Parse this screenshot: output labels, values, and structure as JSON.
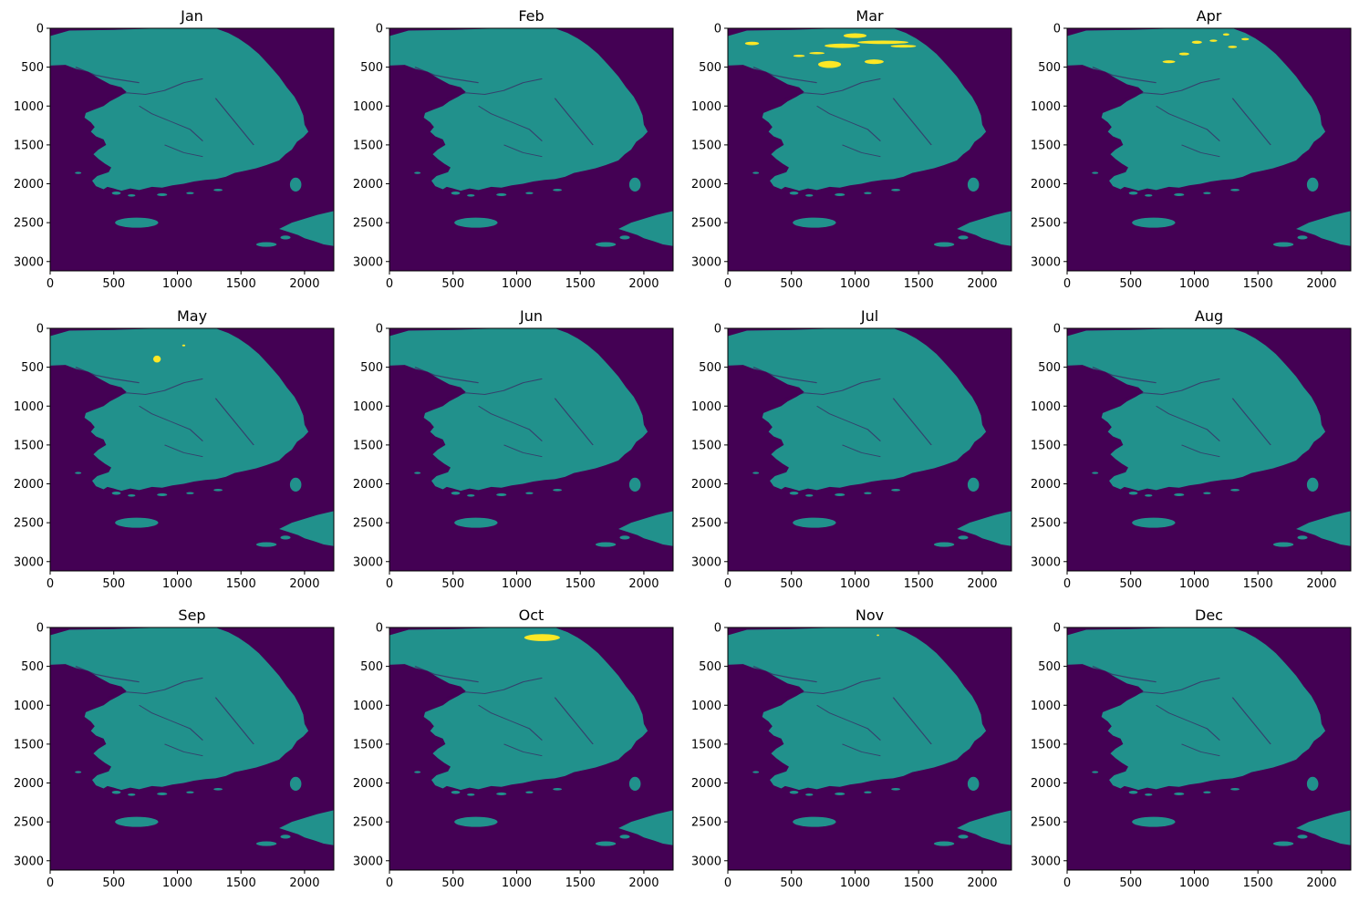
{
  "figure": {
    "background": "#ffffff"
  },
  "colors": {
    "sea": "#440154",
    "land": "#21918c",
    "highlight": "#fde725",
    "axis": "#000000"
  },
  "chart_data": {
    "type": "heatmap",
    "layout": "3x4 grid of raster panels",
    "colormap": "viridis",
    "grid": false,
    "legend": "none",
    "x_ticks": [
      0,
      500,
      1000,
      1500,
      2000
    ],
    "y_ticks": [
      0,
      500,
      1000,
      1500,
      2000,
      2500,
      3000
    ],
    "xlim": [
      0,
      2230
    ],
    "ylim": [
      3120,
      0
    ],
    "panels": [
      {
        "title": "Jan",
        "highlights": []
      },
      {
        "title": "Feb",
        "highlights": []
      },
      {
        "title": "Mar",
        "highlights": [
          {
            "x": 1000,
            "y": 95,
            "rx": 90,
            "ry": 30
          },
          {
            "x": 1220,
            "y": 180,
            "rx": 200,
            "ry": 22
          },
          {
            "x": 900,
            "y": 225,
            "rx": 140,
            "ry": 28
          },
          {
            "x": 800,
            "y": 465,
            "rx": 90,
            "ry": 45
          },
          {
            "x": 1150,
            "y": 430,
            "rx": 75,
            "ry": 30
          },
          {
            "x": 560,
            "y": 355,
            "rx": 45,
            "ry": 15
          },
          {
            "x": 700,
            "y": 320,
            "rx": 60,
            "ry": 15
          },
          {
            "x": 190,
            "y": 195,
            "rx": 55,
            "ry": 22
          },
          {
            "x": 1380,
            "y": 230,
            "rx": 100,
            "ry": 18
          }
        ]
      },
      {
        "title": "Apr",
        "highlights": [
          {
            "x": 800,
            "y": 430,
            "rx": 50,
            "ry": 18
          },
          {
            "x": 920,
            "y": 330,
            "rx": 40,
            "ry": 18
          },
          {
            "x": 1020,
            "y": 180,
            "rx": 40,
            "ry": 20
          },
          {
            "x": 1150,
            "y": 160,
            "rx": 30,
            "ry": 15
          },
          {
            "x": 1300,
            "y": 240,
            "rx": 35,
            "ry": 15
          },
          {
            "x": 1250,
            "y": 80,
            "rx": 25,
            "ry": 15
          },
          {
            "x": 1400,
            "y": 140,
            "rx": 30,
            "ry": 15
          }
        ]
      },
      {
        "title": "May",
        "highlights": [
          {
            "x": 840,
            "y": 395,
            "rx": 30,
            "ry": 45
          },
          {
            "x": 1050,
            "y": 220,
            "rx": 12,
            "ry": 12
          }
        ]
      },
      {
        "title": "Jun",
        "highlights": []
      },
      {
        "title": "Jul",
        "highlights": []
      },
      {
        "title": "Aug",
        "highlights": []
      },
      {
        "title": "Sep",
        "highlights": []
      },
      {
        "title": "Oct",
        "highlights": [
          {
            "x": 1200,
            "y": 130,
            "rx": 140,
            "ry": 45
          }
        ]
      },
      {
        "title": "Nov",
        "highlights": [
          {
            "x": 1180,
            "y": 100,
            "rx": 10,
            "ry": 10
          }
        ]
      },
      {
        "title": "Dec",
        "highlights": []
      }
    ]
  }
}
